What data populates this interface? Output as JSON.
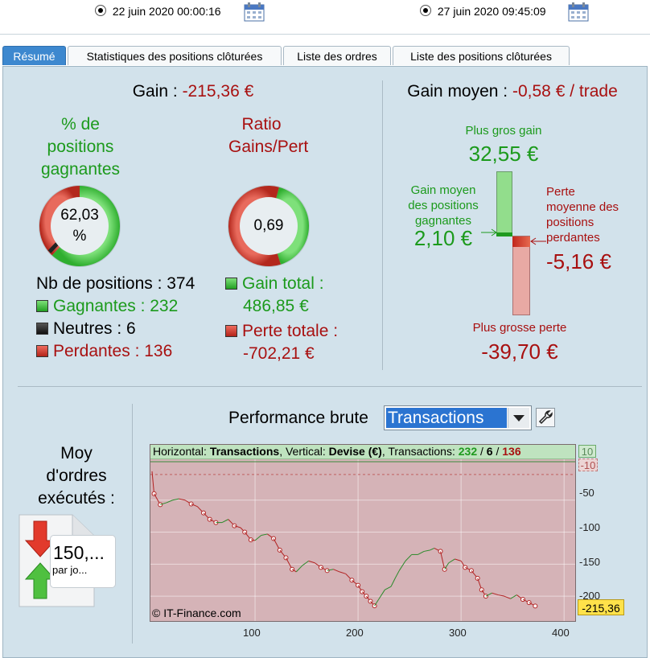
{
  "header": {
    "date_from": "22 juin 2020 00:00:16",
    "date_to": "27 juin 2020 09:45:09"
  },
  "tabs": [
    {
      "label": "Résumé",
      "active": true
    },
    {
      "label": "Statistiques des positions clôturées",
      "active": false
    },
    {
      "label": "Liste des ordres",
      "active": false
    },
    {
      "label": "Liste des positions clôturées",
      "active": false
    }
  ],
  "gain": {
    "label": "Gain :",
    "value": "-215,36 €"
  },
  "win_pct": {
    "title_lines": [
      "% de",
      "positions",
      "gagnantes"
    ],
    "value_lines": [
      "62,03",
      "%"
    ],
    "fraction": 0.6203
  },
  "ratio": {
    "title_lines": [
      "Ratio",
      "Gains/Pert"
    ],
    "value": "0,69",
    "fraction": 0.41
  },
  "positions": {
    "count_label": "Nb de positions : 374",
    "gagnantes": "Gagnantes : 232",
    "neutres": "Neutres : 6",
    "perdantes": "Perdantes : 136"
  },
  "totals": {
    "gain_label": "Gain total :",
    "gain_value": "486,85 €",
    "perte_label": "Perte totale :",
    "perte_value": "-702,21 €"
  },
  "gain_moyen": {
    "label": "Gain moyen :",
    "value": "-0,58 € / trade",
    "plus_gros_gain_label": "Plus gros gain",
    "plus_gros_gain_value": "32,55 €",
    "gain_moyen_gagnantes_label_lines": [
      "Gain moyen",
      "des positions",
      "gagnantes"
    ],
    "gain_moyen_gagnantes_value": "2,10 €",
    "perte_moyenne_label_lines": [
      "Perte",
      "moyenne des",
      "positions",
      "perdantes"
    ],
    "perte_moyenne_value": "-5,16 €",
    "plus_grosse_perte_label": "Plus grosse perte",
    "plus_grosse_perte_value": "-39,70 €"
  },
  "moy_ordres": {
    "title_lines": [
      "Moy",
      "d'ordres",
      "exécutés :"
    ],
    "value": "150,...",
    "unit": "par jo..."
  },
  "performance": {
    "title": "Performance brute",
    "select_value": "Transactions",
    "chart_header": {
      "h_label": "Horizontal: ",
      "h_value": "Transactions",
      "v_label": ", Vertical: ",
      "v_value": "Devise (€)",
      "t_label": ", Transactions: ",
      "t_win": "232",
      "sep1": " / ",
      "t_neutral": "6",
      "sep2": " / ",
      "t_lose": "136"
    },
    "copyright": "© IT-Finance.com",
    "final_label": "-215,36",
    "ref_top_label": "10",
    "ref_bottom_label": "-10"
  },
  "chart_data": {
    "type": "line",
    "xlabel": "",
    "ylabel": "",
    "xlim": [
      0,
      410
    ],
    "ylim": [
      -240,
      15
    ],
    "x_ticks": [
      100,
      200,
      300,
      400
    ],
    "y_ticks": [
      -50,
      -100,
      -150,
      -200
    ],
    "series": [
      {
        "points": [
          [
            0,
            -5
          ],
          [
            2,
            -40
          ],
          [
            8,
            -57
          ],
          [
            14,
            -54
          ],
          [
            20,
            -50
          ],
          [
            26,
            -48
          ],
          [
            32,
            -50
          ],
          [
            38,
            -56
          ],
          [
            44,
            -60
          ],
          [
            50,
            -70
          ],
          [
            56,
            -80
          ],
          [
            62,
            -85
          ],
          [
            68,
            -85
          ],
          [
            74,
            -80
          ],
          [
            80,
            -90
          ],
          [
            86,
            -93
          ],
          [
            90,
            -100
          ],
          [
            96,
            -112
          ],
          [
            100,
            -113
          ],
          [
            106,
            -105
          ],
          [
            112,
            -103
          ],
          [
            118,
            -110
          ],
          [
            124,
            -128
          ],
          [
            130,
            -140
          ],
          [
            136,
            -158
          ],
          [
            140,
            -162
          ],
          [
            146,
            -152
          ],
          [
            152,
            -145
          ],
          [
            158,
            -148
          ],
          [
            164,
            -155
          ],
          [
            170,
            -160
          ],
          [
            176,
            -158
          ],
          [
            182,
            -162
          ],
          [
            188,
            -165
          ],
          [
            194,
            -175
          ],
          [
            200,
            -183
          ],
          [
            204,
            -193
          ],
          [
            208,
            -200
          ],
          [
            212,
            -208
          ],
          [
            216,
            -215
          ],
          [
            220,
            -205
          ],
          [
            226,
            -190
          ],
          [
            232,
            -185
          ],
          [
            236,
            -172
          ],
          [
            240,
            -160
          ],
          [
            246,
            -145
          ],
          [
            252,
            -135
          ],
          [
            258,
            -135
          ],
          [
            264,
            -130
          ],
          [
            270,
            -128
          ],
          [
            274,
            -125
          ],
          [
            280,
            -130
          ],
          [
            284,
            -158
          ],
          [
            288,
            -148
          ],
          [
            294,
            -142
          ],
          [
            300,
            -145
          ],
          [
            304,
            -155
          ],
          [
            310,
            -160
          ],
          [
            316,
            -172
          ],
          [
            320,
            -190
          ],
          [
            324,
            -200
          ],
          [
            330,
            -195
          ],
          [
            336,
            -198
          ],
          [
            342,
            -200
          ],
          [
            348,
            -204
          ],
          [
            354,
            -198
          ],
          [
            360,
            -205
          ],
          [
            366,
            -210
          ],
          [
            372,
            -215.36
          ]
        ],
        "color": "#2a8a2a",
        "final_value": -215.36
      }
    ]
  }
}
